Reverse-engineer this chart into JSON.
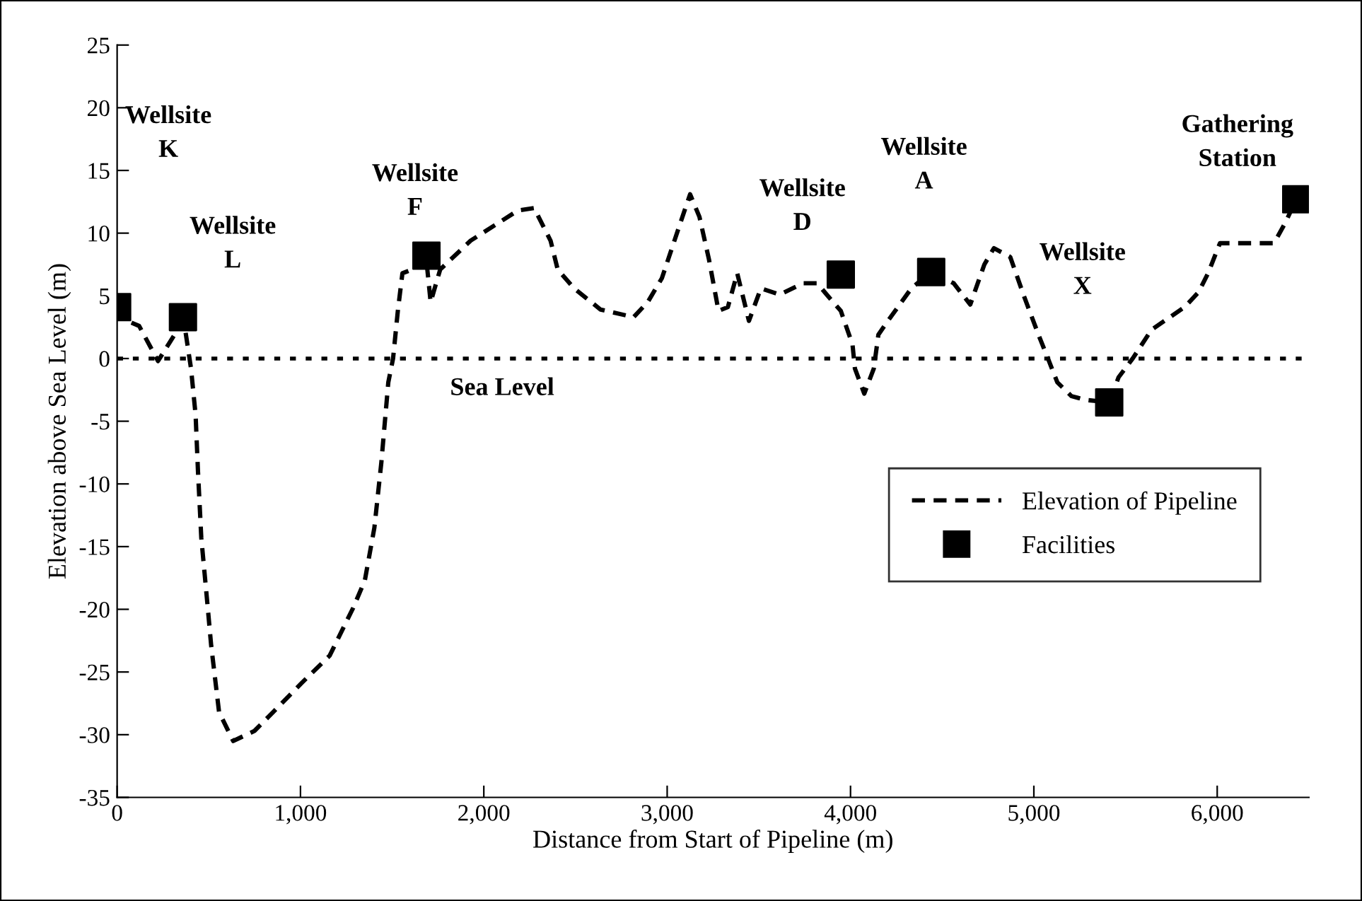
{
  "chart_data": {
    "type": "line",
    "xlabel": "Distance from Start of Pipeline (m)",
    "ylabel": "Elevation above Sea Level (m)",
    "xlim": [
      0,
      6500
    ],
    "ylim": [
      -35,
      25
    ],
    "xticks": [
      0,
      {
        "value": 1000,
        "label": "1,000"
      },
      {
        "value": 2000,
        "label": "2,000"
      },
      {
        "value": 3000,
        "label": "3,000"
      },
      {
        "value": 4000,
        "label": "4,000"
      },
      {
        "value": 5000,
        "label": "5,000"
      },
      {
        "value": 6000,
        "label": "6,000"
      }
    ],
    "yticks": [
      -35,
      -30,
      -25,
      -20,
      -15,
      -10,
      -5,
      0,
      5,
      10,
      15,
      20,
      25
    ],
    "grid": false,
    "legend": "lower right",
    "series": [
      {
        "name": "Elevation of Pipeline",
        "color": "#000000",
        "line_style": "dashed",
        "marker": "none",
        "x": [
          0,
          56,
          120,
          223,
          313,
          364,
          403,
          428,
          441,
          459,
          492,
          513,
          556,
          633,
          749,
          851,
          1005,
          1159,
          1287,
          1351,
          1403,
          1441,
          1479,
          1505,
          1531,
          1556,
          1608,
          1685,
          1710,
          1762,
          1928,
          2185,
          2274,
          2364,
          2403,
          2492,
          2637,
          2817,
          2894,
          2971,
          3074,
          3125,
          3176,
          3228,
          3280,
          3331,
          3382,
          3446,
          3511,
          3613,
          3742,
          3819,
          3870,
          3947,
          4011,
          4024,
          4075,
          4127,
          4152,
          4204,
          4332,
          4440,
          4563,
          4653,
          4730,
          4782,
          4871,
          4948,
          5025,
          5077,
          5128,
          5205,
          5282,
          5411,
          5462,
          5539,
          5642,
          5822,
          5899,
          5950,
          6015,
          6310,
          6374,
          6431
        ],
        "values": [
          4.1,
          3.0,
          2.6,
          -0.2,
          1.9,
          3.0,
          -0.8,
          -4.5,
          -9,
          -14.3,
          -19.5,
          -22.9,
          -28.2,
          -30.5,
          -29.7,
          -28.2,
          -25.9,
          -23.7,
          -19.9,
          -17.7,
          -13.5,
          -8.3,
          -1.9,
          0,
          3.8,
          6.8,
          7.1,
          8.1,
          4.5,
          7.1,
          9.4,
          11.8,
          12.0,
          9.4,
          7.1,
          5.6,
          3.9,
          3.3,
          4.5,
          6.4,
          10.9,
          13.1,
          11.3,
          7.9,
          3.8,
          4.1,
          6.8,
          3.0,
          5.6,
          5.1,
          6.0,
          6.0,
          5.1,
          3.8,
          1.1,
          -0.8,
          -2.8,
          -0.8,
          1.9,
          3.0,
          5.6,
          6.9,
          6.0,
          4.3,
          7.5,
          8.8,
          8.1,
          4.9,
          1.9,
          0,
          -1.9,
          -3.0,
          -3.3,
          -3.5,
          -1.5,
          0,
          2.3,
          4.1,
          5.3,
          6.8,
          9.2,
          9.2,
          10.9,
          12.7
        ]
      },
      {
        "name": "Facilities",
        "type": "scatter",
        "color": "#000000",
        "marker": "square",
        "x": [
          0,
          359,
          1687,
          3947,
          4440,
          5411,
          6431
        ],
        "values": [
          4.1,
          3.3,
          8.2,
          6.7,
          6.9,
          -3.5,
          12.7
        ]
      }
    ],
    "ref_lines": [
      {
        "axis": "y",
        "value": 0,
        "label": "Sea Level",
        "color": "#000000",
        "line_style": "dotted"
      }
    ],
    "annotations": [
      "Wellsite\nK",
      "Wellsite\nL",
      "Wellsite\nF",
      "Wellsite\nD",
      "Wellsite\nA",
      "Wellsite\nX",
      "Gathering\nStation"
    ]
  }
}
